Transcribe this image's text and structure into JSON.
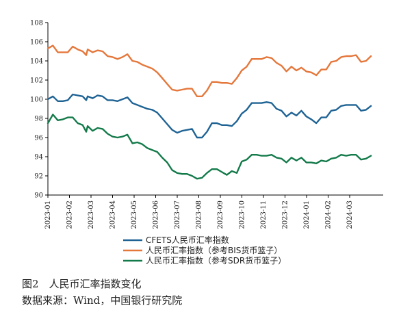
{
  "chart_data": {
    "type": "line",
    "x_ticks": [
      "2023-01",
      "2023-02",
      "2023-03",
      "2023-04",
      "2023-05",
      "2023-06",
      "2023-07",
      "2023-08",
      "2023-09",
      "2023-10",
      "2023-11",
      "2023-12",
      "2024-01",
      "2024-02",
      "2024-03"
    ],
    "ylim": [
      90,
      108
    ],
    "y_ticks": [
      90,
      92,
      94,
      96,
      98,
      100,
      102,
      104,
      106,
      108
    ],
    "grid": false,
    "legend_position": "bottom",
    "series": [
      {
        "name": "CFETS人民币汇率指数",
        "color": "#1f6394",
        "values": [
          [
            "2023-01-01",
            100.0
          ],
          [
            "2023-01-08",
            100.3
          ],
          [
            "2023-01-15",
            99.8
          ],
          [
            "2023-01-22",
            99.8
          ],
          [
            "2023-01-29",
            99.9
          ],
          [
            "2023-02-05",
            100.5
          ],
          [
            "2023-02-12",
            100.4
          ],
          [
            "2023-02-19",
            100.3
          ],
          [
            "2023-02-24",
            99.9
          ],
          [
            "2023-02-26",
            100.3
          ],
          [
            "2023-03-05",
            100.1
          ],
          [
            "2023-03-12",
            100.4
          ],
          [
            "2023-03-19",
            100.3
          ],
          [
            "2023-03-26",
            99.9
          ],
          [
            "2023-04-02",
            99.9
          ],
          [
            "2023-04-09",
            99.8
          ],
          [
            "2023-04-16",
            100.0
          ],
          [
            "2023-04-23",
            100.2
          ],
          [
            "2023-04-30",
            99.6
          ],
          [
            "2023-05-07",
            99.4
          ],
          [
            "2023-05-14",
            99.2
          ],
          [
            "2023-05-21",
            99.0
          ],
          [
            "2023-05-28",
            98.9
          ],
          [
            "2023-06-04",
            98.6
          ],
          [
            "2023-06-11",
            98.0
          ],
          [
            "2023-06-18",
            97.4
          ],
          [
            "2023-06-25",
            96.8
          ],
          [
            "2023-07-02",
            96.5
          ],
          [
            "2023-07-09",
            96.7
          ],
          [
            "2023-07-16",
            96.8
          ],
          [
            "2023-07-23",
            96.9
          ],
          [
            "2023-07-30",
            96.0
          ],
          [
            "2023-08-06",
            96.0
          ],
          [
            "2023-08-13",
            96.6
          ],
          [
            "2023-08-20",
            97.5
          ],
          [
            "2023-08-27",
            97.5
          ],
          [
            "2023-09-03",
            97.3
          ],
          [
            "2023-09-10",
            97.3
          ],
          [
            "2023-09-17",
            97.2
          ],
          [
            "2023-09-24",
            97.7
          ],
          [
            "2023-10-01",
            98.5
          ],
          [
            "2023-10-08",
            98.9
          ],
          [
            "2023-10-15",
            99.6
          ],
          [
            "2023-10-22",
            99.6
          ],
          [
            "2023-10-29",
            99.6
          ],
          [
            "2023-11-05",
            99.7
          ],
          [
            "2023-11-12",
            99.6
          ],
          [
            "2023-11-19",
            99.0
          ],
          [
            "2023-11-26",
            98.8
          ],
          [
            "2023-12-03",
            98.2
          ],
          [
            "2023-12-10",
            98.6
          ],
          [
            "2023-12-17",
            98.3
          ],
          [
            "2023-12-24",
            98.8
          ],
          [
            "2023-12-31",
            98.2
          ],
          [
            "2024-01-07",
            97.9
          ],
          [
            "2024-01-14",
            97.5
          ],
          [
            "2024-01-21",
            98.1
          ],
          [
            "2024-01-28",
            98.1
          ],
          [
            "2024-02-04",
            98.8
          ],
          [
            "2024-02-11",
            98.9
          ],
          [
            "2024-02-18",
            99.3
          ],
          [
            "2024-02-25",
            99.4
          ],
          [
            "2024-03-03",
            99.4
          ],
          [
            "2024-03-10",
            99.4
          ],
          [
            "2024-03-17",
            98.8
          ],
          [
            "2024-03-24",
            98.9
          ],
          [
            "2024-03-31",
            99.3
          ]
        ]
      },
      {
        "name": "人民币汇率指数（参考BIS货币篮子）",
        "color": "#e5773b",
        "values": [
          [
            "2023-01-01",
            105.3
          ],
          [
            "2023-01-08",
            105.6
          ],
          [
            "2023-01-15",
            104.9
          ],
          [
            "2023-01-22",
            104.9
          ],
          [
            "2023-01-29",
            104.9
          ],
          [
            "2023-02-05",
            105.5
          ],
          [
            "2023-02-12",
            105.2
          ],
          [
            "2023-02-19",
            105.0
          ],
          [
            "2023-02-24",
            104.6
          ],
          [
            "2023-02-26",
            105.2
          ],
          [
            "2023-03-05",
            104.9
          ],
          [
            "2023-03-12",
            105.1
          ],
          [
            "2023-03-19",
            105.0
          ],
          [
            "2023-03-26",
            104.5
          ],
          [
            "2023-04-02",
            104.4
          ],
          [
            "2023-04-09",
            104.2
          ],
          [
            "2023-04-16",
            104.4
          ],
          [
            "2023-04-23",
            104.7
          ],
          [
            "2023-04-30",
            104.0
          ],
          [
            "2023-05-07",
            103.9
          ],
          [
            "2023-05-14",
            103.6
          ],
          [
            "2023-05-21",
            103.4
          ],
          [
            "2023-05-28",
            103.2
          ],
          [
            "2023-06-04",
            102.8
          ],
          [
            "2023-06-11",
            102.2
          ],
          [
            "2023-06-18",
            101.6
          ],
          [
            "2023-06-25",
            101.0
          ],
          [
            "2023-07-02",
            100.9
          ],
          [
            "2023-07-09",
            101.0
          ],
          [
            "2023-07-16",
            101.1
          ],
          [
            "2023-07-23",
            101.1
          ],
          [
            "2023-07-30",
            100.3
          ],
          [
            "2023-08-06",
            100.3
          ],
          [
            "2023-08-13",
            100.9
          ],
          [
            "2023-08-20",
            101.8
          ],
          [
            "2023-08-27",
            101.8
          ],
          [
            "2023-09-03",
            101.7
          ],
          [
            "2023-09-10",
            101.7
          ],
          [
            "2023-09-17",
            101.6
          ],
          [
            "2023-09-24",
            102.2
          ],
          [
            "2023-10-01",
            103.0
          ],
          [
            "2023-10-08",
            103.4
          ],
          [
            "2023-10-15",
            104.2
          ],
          [
            "2023-10-22",
            104.2
          ],
          [
            "2023-10-29",
            104.2
          ],
          [
            "2023-11-05",
            104.4
          ],
          [
            "2023-11-12",
            104.3
          ],
          [
            "2023-11-19",
            103.8
          ],
          [
            "2023-11-26",
            103.5
          ],
          [
            "2023-12-03",
            102.9
          ],
          [
            "2023-12-10",
            103.4
          ],
          [
            "2023-12-17",
            103.0
          ],
          [
            "2023-12-24",
            103.3
          ],
          [
            "2023-12-31",
            102.9
          ],
          [
            "2024-01-07",
            102.8
          ],
          [
            "2024-01-14",
            102.5
          ],
          [
            "2024-01-21",
            103.1
          ],
          [
            "2024-01-28",
            103.1
          ],
          [
            "2024-02-04",
            103.9
          ],
          [
            "2024-02-11",
            104.0
          ],
          [
            "2024-02-18",
            104.4
          ],
          [
            "2024-02-25",
            104.5
          ],
          [
            "2024-03-03",
            104.5
          ],
          [
            "2024-03-10",
            104.6
          ],
          [
            "2024-03-17",
            103.9
          ],
          [
            "2024-03-24",
            104.0
          ],
          [
            "2024-03-31",
            104.5
          ]
        ]
      },
      {
        "name": "人民币汇率指数（参考SDR货币篮子）",
        "color": "#137a4a",
        "values": [
          [
            "2023-01-01",
            97.5
          ],
          [
            "2023-01-08",
            98.4
          ],
          [
            "2023-01-15",
            97.8
          ],
          [
            "2023-01-22",
            97.9
          ],
          [
            "2023-01-29",
            98.1
          ],
          [
            "2023-02-05",
            98.1
          ],
          [
            "2023-02-12",
            97.5
          ],
          [
            "2023-02-19",
            97.3
          ],
          [
            "2023-02-24",
            96.6
          ],
          [
            "2023-02-26",
            97.2
          ],
          [
            "2023-03-05",
            96.7
          ],
          [
            "2023-03-12",
            97.0
          ],
          [
            "2023-03-19",
            96.9
          ],
          [
            "2023-03-26",
            96.4
          ],
          [
            "2023-04-02",
            96.1
          ],
          [
            "2023-04-09",
            96.0
          ],
          [
            "2023-04-16",
            96.1
          ],
          [
            "2023-04-23",
            96.3
          ],
          [
            "2023-04-30",
            95.4
          ],
          [
            "2023-05-07",
            95.5
          ],
          [
            "2023-05-14",
            95.3
          ],
          [
            "2023-05-21",
            94.9
          ],
          [
            "2023-05-28",
            94.7
          ],
          [
            "2023-06-04",
            94.5
          ],
          [
            "2023-06-11",
            93.9
          ],
          [
            "2023-06-18",
            93.4
          ],
          [
            "2023-06-25",
            92.6
          ],
          [
            "2023-07-02",
            92.3
          ],
          [
            "2023-07-09",
            92.2
          ],
          [
            "2023-07-16",
            92.2
          ],
          [
            "2023-07-23",
            92.0
          ],
          [
            "2023-07-30",
            91.7
          ],
          [
            "2023-08-06",
            91.8
          ],
          [
            "2023-08-13",
            92.3
          ],
          [
            "2023-08-20",
            92.7
          ],
          [
            "2023-08-27",
            92.7
          ],
          [
            "2023-09-03",
            92.4
          ],
          [
            "2023-09-10",
            92.1
          ],
          [
            "2023-09-17",
            92.5
          ],
          [
            "2023-09-24",
            92.3
          ],
          [
            "2023-10-01",
            93.5
          ],
          [
            "2023-10-08",
            93.7
          ],
          [
            "2023-10-15",
            94.2
          ],
          [
            "2023-10-22",
            94.2
          ],
          [
            "2023-10-29",
            94.1
          ],
          [
            "2023-11-05",
            94.1
          ],
          [
            "2023-11-12",
            94.2
          ],
          [
            "2023-11-19",
            93.9
          ],
          [
            "2023-11-26",
            93.8
          ],
          [
            "2023-12-03",
            93.4
          ],
          [
            "2023-12-10",
            93.9
          ],
          [
            "2023-12-17",
            93.6
          ],
          [
            "2023-12-24",
            93.9
          ],
          [
            "2023-12-31",
            93.4
          ],
          [
            "2024-01-07",
            93.4
          ],
          [
            "2024-01-14",
            93.3
          ],
          [
            "2024-01-21",
            93.6
          ],
          [
            "2024-01-28",
            93.5
          ],
          [
            "2024-02-04",
            93.8
          ],
          [
            "2024-02-11",
            93.9
          ],
          [
            "2024-02-18",
            94.2
          ],
          [
            "2024-02-25",
            94.1
          ],
          [
            "2024-03-03",
            94.2
          ],
          [
            "2024-03-10",
            94.2
          ],
          [
            "2024-03-17",
            93.7
          ],
          [
            "2024-03-24",
            93.8
          ],
          [
            "2024-03-31",
            94.1
          ]
        ]
      }
    ]
  },
  "caption": {
    "title": "图2　人民币汇率指数变化",
    "source": "数据来源：Wind，中国银行研究院"
  }
}
